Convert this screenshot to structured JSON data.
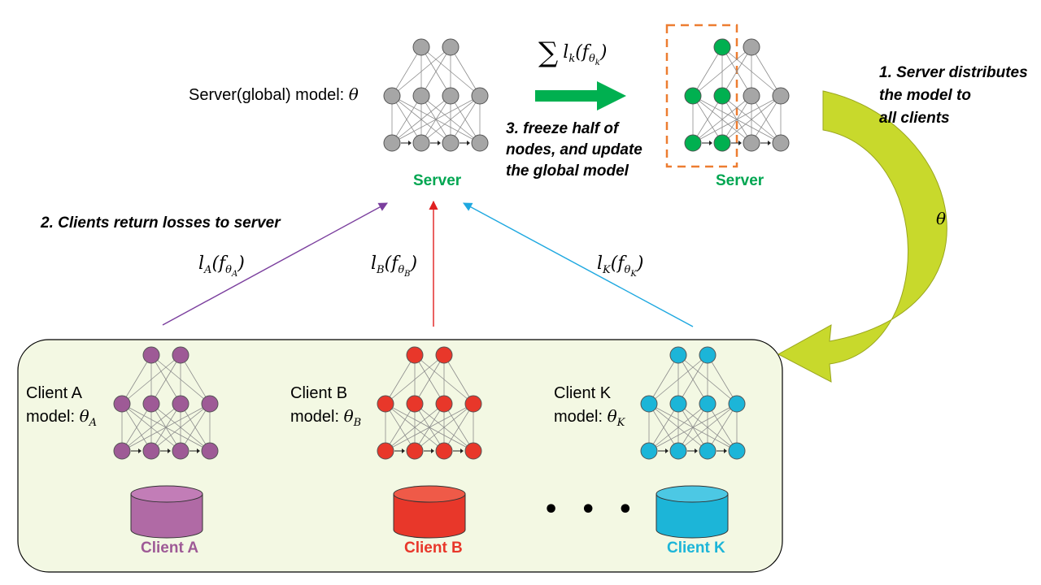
{
  "colors": {
    "server_node": "#a6a6a6",
    "server_node_active": "#00b050",
    "client_a": "#9e5a96",
    "client_b": "#e8372a",
    "client_k": "#1cb5d8",
    "panel_bg": "#f3f8e3",
    "dist_arrow": "#c8d92c",
    "freeze_box": "#ed7d31",
    "green_arrow": "#00b050",
    "arrow_a": "#7b3f9e",
    "arrow_b": "#e02020",
    "arrow_k": "#1ea8e0",
    "server_label": "#00a651"
  },
  "server": {
    "model_label": "Server(global) model:",
    "model_symbol": "θ",
    "label_left": "Server",
    "label_right": "Server"
  },
  "steps": {
    "step1": [
      "1. Server distributes",
      "the model to",
      "all clients"
    ],
    "step2": "2. Clients return losses to server",
    "step3": [
      "3. freeze half of",
      "nodes, and update",
      "the global model"
    ]
  },
  "formulas": {
    "sum_sigma": "∑",
    "sum_l": "l",
    "sum_k": "k",
    "sum_f": "(f",
    "sum_theta": "θ",
    "sum_theta_sub": "k",
    "sum_close": ")",
    "dist_theta": "θ",
    "loss_a": {
      "l": "l",
      "sub": "A",
      "f": "(f",
      "theta": "θ",
      "theta_sub": "A",
      "close": ")"
    },
    "loss_b": {
      "l": "l",
      "sub": "B",
      "f": "(f",
      "theta": "θ",
      "theta_sub": "B",
      "close": ")"
    },
    "loss_k": {
      "l": "l",
      "sub": "K",
      "f": "(f",
      "theta": "θ",
      "theta_sub": "K",
      "close": ")"
    }
  },
  "clients": [
    {
      "id": "a",
      "name": "Client A",
      "model_text": "model:",
      "theta": "θ",
      "theta_sub": "A",
      "db_label": "Client A"
    },
    {
      "id": "b",
      "name": "Client B",
      "model_text": "model:",
      "theta": "θ",
      "theta_sub": "B",
      "db_label": "Client B"
    },
    {
      "id": "k",
      "name": "Client K",
      "model_text": "model:",
      "theta": "θ",
      "theta_sub": "K",
      "db_label": "Client K"
    }
  ],
  "ellipsis": "• • •"
}
